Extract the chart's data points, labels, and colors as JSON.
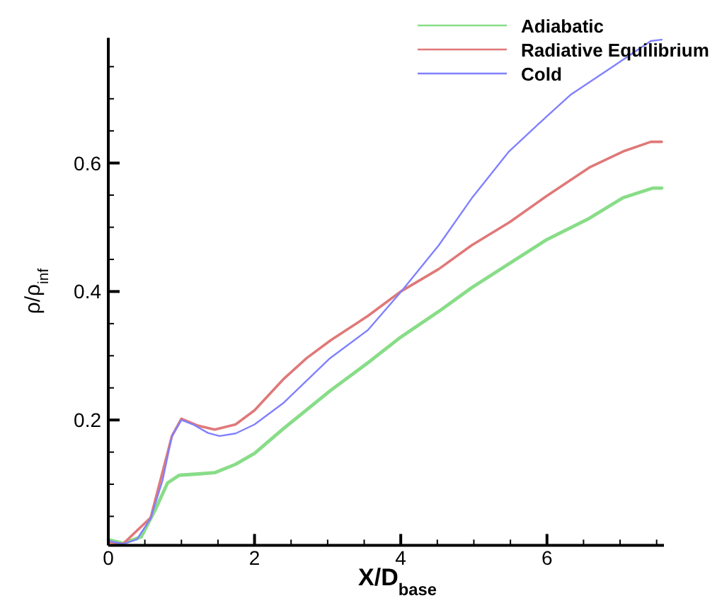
{
  "chart_data": {
    "type": "line",
    "xlabel": "X/D$_{base}$",
    "ylabel": "ρ/ρ$_{inf}$",
    "xlim": [
      0,
      7.6
    ],
    "ylim": [
      0.005,
      0.795
    ],
    "xticks": [
      0,
      {
        "value": 0.5,
        "label": null
      },
      {
        "value": 1,
        "label": null
      },
      {
        "value": 1.5,
        "label": null
      },
      2,
      {
        "value": 2.5,
        "label": null
      },
      {
        "value": 3,
        "label": null
      },
      {
        "value": 3.5,
        "label": null
      },
      4,
      {
        "value": 4.5,
        "label": null
      },
      {
        "value": 5,
        "label": null
      },
      {
        "value": 5.5,
        "label": null
      },
      6,
      {
        "value": 6.5,
        "label": null
      },
      {
        "value": 7,
        "label": null
      },
      {
        "value": 7.5,
        "label": null
      }
    ],
    "yticks": [
      {
        "value": 0.05,
        "label": null
      },
      {
        "value": 0.1,
        "label": null
      },
      {
        "value": 0.15,
        "label": null
      },
      0.2,
      {
        "value": 0.25,
        "label": null
      },
      {
        "value": 0.3,
        "label": null
      },
      {
        "value": 0.35,
        "label": null
      },
      0.4,
      {
        "value": 0.45,
        "label": null
      },
      {
        "value": 0.5,
        "label": null
      },
      {
        "value": 0.55,
        "label": null
      },
      0.6,
      {
        "value": 0.65,
        "label": null
      },
      {
        "value": 0.7,
        "label": null
      },
      {
        "value": 0.75,
        "label": null
      }
    ],
    "grid": false,
    "legend": "top right",
    "marker": "none",
    "line_style": "solid",
    "series": [
      {
        "name": "Adiabatic",
        "color": "#88dd88",
        "x": [
          0,
          0.2,
          0.45,
          0.65,
          0.81,
          0.97,
          1.23,
          1.455,
          1.74,
          2.0,
          2.39,
          3.04,
          3.55,
          4.0,
          4.52,
          4.97,
          5.49,
          6.0,
          6.58,
          7.04,
          7.45,
          7.57
        ],
        "values": [
          0.014,
          0.008,
          0.018,
          0.062,
          0.102,
          0.114,
          0.116,
          0.118,
          0.131,
          0.148,
          0.186,
          0.246,
          0.289,
          0.329,
          0.369,
          0.406,
          0.444,
          0.481,
          0.514,
          0.546,
          0.561,
          0.561
        ]
      },
      {
        "name": "Radiative Equilibrium",
        "color": "#e07878",
        "x": [
          0,
          0.2,
          0.58,
          0.87,
          1.0,
          1.23,
          1.455,
          1.74,
          2.0,
          2.39,
          2.71,
          3.04,
          3.55,
          3.81,
          4.0,
          4.52,
          4.97,
          5.49,
          6.0,
          6.58,
          7.04,
          7.42,
          7.57
        ],
        "values": [
          0.01,
          0.007,
          0.048,
          0.175,
          0.202,
          0.191,
          0.185,
          0.193,
          0.215,
          0.263,
          0.296,
          0.324,
          0.362,
          0.384,
          0.4,
          0.435,
          0.472,
          0.508,
          0.549,
          0.593,
          0.618,
          0.633,
          0.633
        ]
      },
      {
        "name": "Cold",
        "color": "#8080ff",
        "x": [
          0,
          0.2,
          0.39,
          0.58,
          0.74,
          0.87,
          1.0,
          1.16,
          1.36,
          1.52,
          1.74,
          2.0,
          2.39,
          3.03,
          3.55,
          4.0,
          4.52,
          4.97,
          5.48,
          6.0,
          6.32,
          6.9,
          7.42,
          7.57
        ],
        "values": [
          0.012,
          0.007,
          0.014,
          0.047,
          0.105,
          0.175,
          0.2,
          0.193,
          0.18,
          0.175,
          0.179,
          0.193,
          0.226,
          0.296,
          0.34,
          0.399,
          0.472,
          0.545,
          0.618,
          0.673,
          0.706,
          0.75,
          0.79,
          0.792
        ]
      }
    ]
  }
}
